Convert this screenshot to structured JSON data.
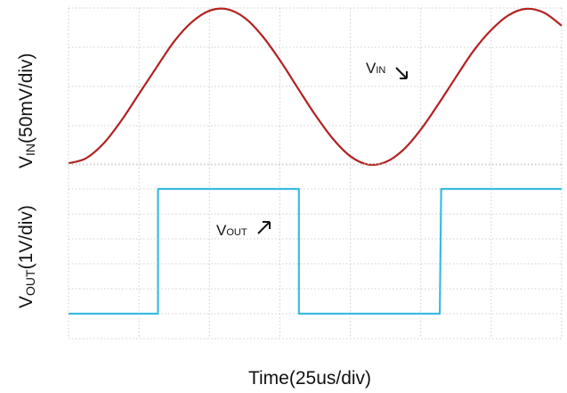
{
  "chart_data": [
    {
      "type": "line",
      "panel": "top",
      "ylabel_main": "V",
      "ylabel_sub": "IN",
      "ylabel_rest": "(50mV/div)",
      "annotation_main": "V",
      "annotation_sub": "IN",
      "x_divisions": 7,
      "y_divisions": 4,
      "grid": true,
      "series": [
        {
          "color": "#b22222",
          "x": [
            0,
            0.25,
            0.5,
            0.75,
            1.0,
            1.25,
            1.5,
            1.75,
            2.0,
            2.25,
            2.5,
            2.75,
            3.0,
            3.25,
            3.5,
            3.75,
            4.0,
            4.25,
            4.5,
            4.75,
            5.0,
            5.25,
            5.5,
            5.75,
            6.0,
            6.25,
            6.5,
            6.75,
            7.0
          ],
          "values": [
            0.04,
            0.17,
            0.55,
            1.13,
            1.81,
            2.49,
            3.15,
            3.64,
            3.93,
            3.97,
            3.75,
            3.29,
            2.67,
            1.97,
            1.28,
            0.67,
            0.22,
            0.01,
            0.07,
            0.38,
            0.9,
            1.55,
            2.24,
            2.91,
            3.44,
            3.82,
            3.98,
            3.88,
            3.55
          ]
        }
      ]
    },
    {
      "type": "line",
      "panel": "bottom",
      "xlabel": "Time(25us/div)",
      "ylabel_main": "V",
      "ylabel_sub": "OUT",
      "ylabel_rest": "(1V/div)",
      "annotation_main": "V",
      "annotation_sub": "OUT",
      "x_divisions": 7,
      "y_divisions": 7,
      "grid": true,
      "series": [
        {
          "color": "#3bbbe0",
          "x": [
            0,
            1.27,
            1.27,
            3.27,
            3.27,
            5.27,
            5.29,
            7.0
          ],
          "values": [
            1.0,
            1.0,
            6.0,
            6.0,
            1.0,
            1.0,
            6.0,
            6.0
          ]
        }
      ]
    }
  ]
}
